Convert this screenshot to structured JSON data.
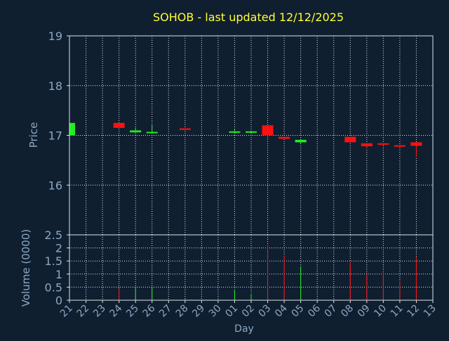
{
  "chart_data": {
    "type": "candlestick",
    "title": "SOHOB - last updated 12/12/2025",
    "xlabel": "Day",
    "price": {
      "ylabel": "Price",
      "ylim": [
        15.0,
        19.0
      ],
      "yticks": [
        "16",
        "17",
        "18",
        "19"
      ]
    },
    "volume": {
      "ylabel": "Volume (0000)",
      "ylim": [
        0,
        2.5
      ],
      "yticks": [
        "0",
        "0.5",
        "1",
        "1.5",
        "2",
        "2.5"
      ]
    },
    "grid": true,
    "x_ticks": [
      "21",
      "22",
      "23",
      "24",
      "25",
      "26",
      "27",
      "28",
      "29",
      "30",
      "01",
      "02",
      "03",
      "04",
      "05",
      "06",
      "07",
      "08",
      "09",
      "10",
      "11",
      "12",
      "13"
    ],
    "candles": [
      {
        "day": "21",
        "open": 17.0,
        "close": 17.25,
        "high": 17.25,
        "low": 17.0,
        "volume": 0.0
      },
      {
        "day": "24",
        "open": 17.25,
        "close": 17.15,
        "high": 17.25,
        "low": 17.15,
        "volume": 0.45
      },
      {
        "day": "25",
        "open": 17.06,
        "close": 17.1,
        "high": 17.15,
        "low": 17.06,
        "volume": 0.45
      },
      {
        "day": "26",
        "open": 17.06,
        "close": 17.07,
        "high": 17.2,
        "low": 17.05,
        "volume": 0.45
      },
      {
        "day": "28",
        "open": 17.14,
        "close": 17.11,
        "high": 17.14,
        "low": 17.11,
        "volume": 0.05
      },
      {
        "day": "01",
        "open": 17.06,
        "close": 17.08,
        "high": 17.13,
        "low": 17.06,
        "volume": 0.4
      },
      {
        "day": "02",
        "open": 17.06,
        "close": 17.08,
        "high": 17.08,
        "low": 17.06,
        "volume": 0.25
      },
      {
        "day": "03",
        "open": 17.2,
        "close": 17.0,
        "high": 17.2,
        "low": 16.9,
        "volume": 2.1
      },
      {
        "day": "04",
        "open": 16.97,
        "close": 16.93,
        "high": 16.97,
        "low": 16.93,
        "volume": 1.7
      },
      {
        "day": "05",
        "open": 16.86,
        "close": 16.91,
        "high": 16.91,
        "low": 16.83,
        "volume": 1.3
      },
      {
        "day": "08",
        "open": 16.97,
        "close": 16.86,
        "high": 16.97,
        "low": 16.86,
        "volume": 1.45
      },
      {
        "day": "09",
        "open": 16.84,
        "close": 16.78,
        "high": 16.84,
        "low": 16.74,
        "volume": 1.0
      },
      {
        "day": "10",
        "open": 16.84,
        "close": 16.82,
        "high": 16.84,
        "low": 16.79,
        "volume": 1.15
      },
      {
        "day": "11",
        "open": 16.8,
        "close": 16.79,
        "high": 16.8,
        "low": 16.76,
        "volume": 0.75
      },
      {
        "day": "12",
        "open": 16.86,
        "close": 16.79,
        "high": 16.86,
        "low": 16.57,
        "volume": 1.65
      }
    ],
    "colors": {
      "background": "#0f1f30",
      "frame": "#dbe3ea",
      "grid": "#dbe3ea",
      "axis_text": "#8ca7c2",
      "title": "#ffff33",
      "up": "#22ee22",
      "down": "#ff1111"
    }
  }
}
